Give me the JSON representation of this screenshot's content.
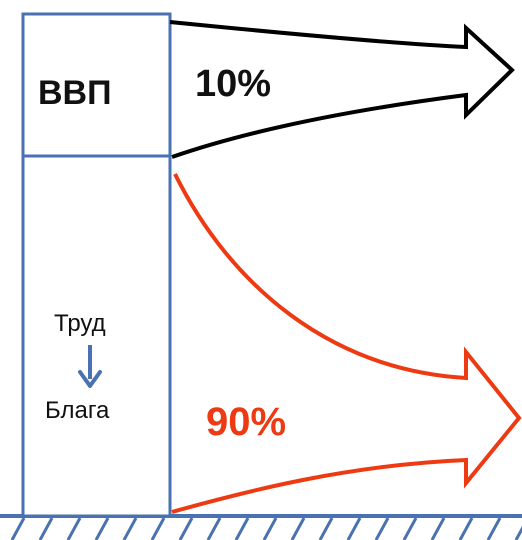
{
  "blocks": {
    "top_label": "ВВП",
    "bottom_top_label": "Труд",
    "bottom_bottom_label": "Блага"
  },
  "arrows": {
    "top_percent": "10%",
    "bottom_percent": "90%"
  },
  "colors": {
    "box_stroke": "#4a72b0",
    "ground": "#4a72b0",
    "small_arrow": "#4a72b0",
    "top_arrow": "#000000",
    "bottom_arrow": "#ee3a12",
    "bottom_percent": "#ee3a12"
  }
}
